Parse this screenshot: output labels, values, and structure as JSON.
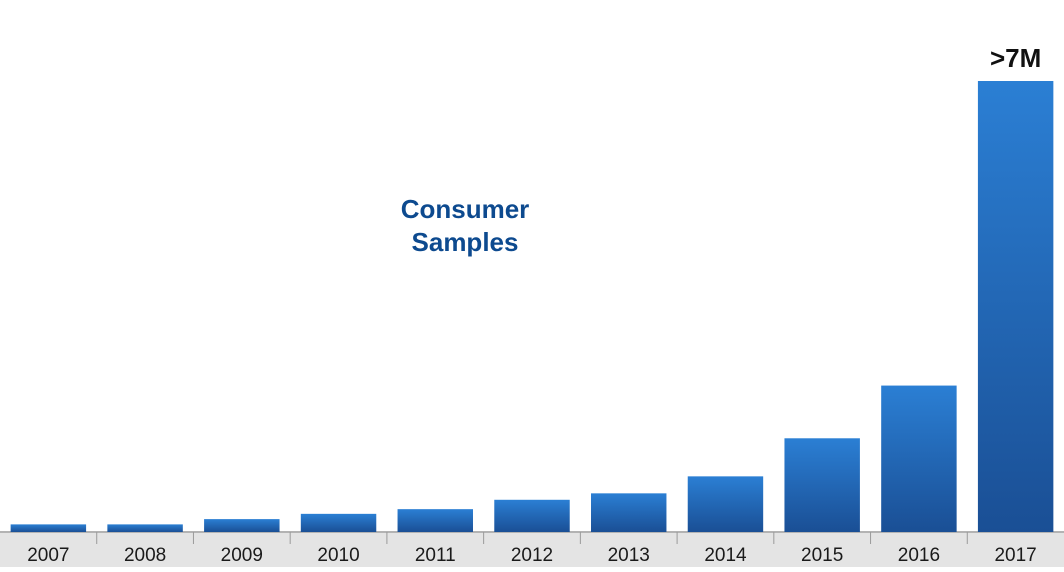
{
  "chart_data": {
    "type": "bar",
    "categories": [
      "2007",
      "2008",
      "2009",
      "2010",
      "2011",
      "2012",
      "2013",
      "2014",
      "2015",
      "2016",
      "2017"
    ],
    "values": [
      0.13,
      0.13,
      0.22,
      0.31,
      0.39,
      0.55,
      0.66,
      0.95,
      1.6,
      2.5,
      7.7
    ],
    "annotation": "Consumer\nSamples",
    "annotation_lines": [
      "Consumer",
      "Samples"
    ],
    "data_labels": [
      {
        "category": "2017",
        "text": ">7M"
      }
    ],
    "ylim": [
      0,
      8.4
    ],
    "grid": false,
    "legend": "none",
    "title": "",
    "xlabel": "",
    "ylabel": ""
  },
  "colors": {
    "bar_top": "#2b7fd4",
    "bar_bottom": "#1a4f95",
    "axis_band": "#e4e4e4",
    "axis_line": "#9a9a9a",
    "annotation": "#0d4a8f"
  }
}
